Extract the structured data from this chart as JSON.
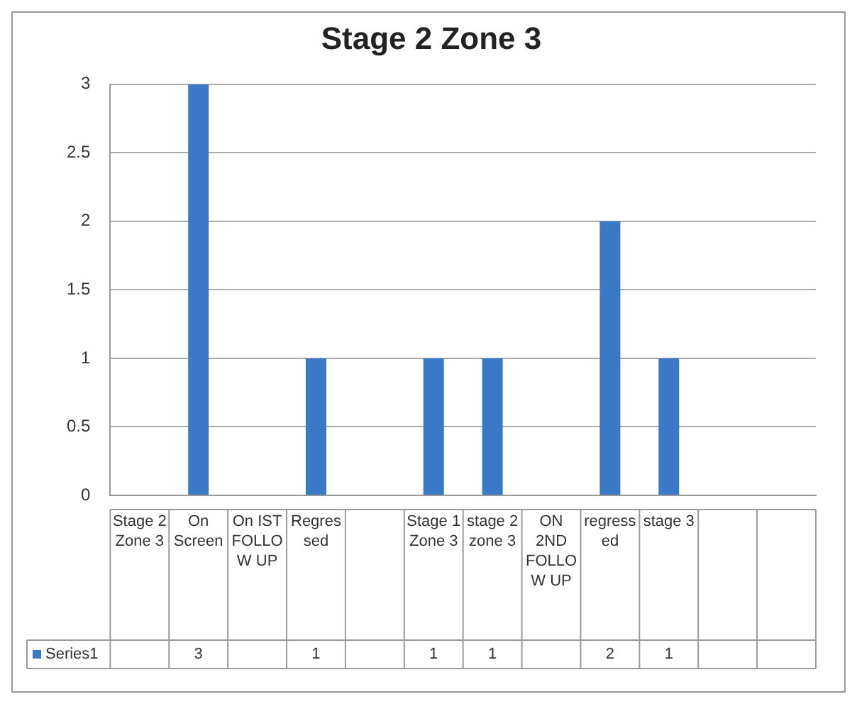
{
  "chart_data": {
    "type": "bar",
    "title": "Stage 2 Zone 3",
    "categories": [
      "Stage 2 Zone 3",
      "On Screen",
      "On IST FOLLOW UP",
      "Regressed",
      null,
      "Stage 1 Zone 3",
      "stage 2 zone 3",
      "ON 2ND FOLLOW UP",
      "regressed",
      "stage 3",
      null,
      null
    ],
    "series": [
      {
        "name": "Series1",
        "color": "#3a78c8",
        "values": [
          null,
          3,
          null,
          1,
          null,
          1,
          1,
          null,
          2,
          1,
          null,
          null
        ]
      }
    ],
    "ylim": [
      0,
      3
    ],
    "yticks": [
      0,
      0.5,
      1,
      1.5,
      2,
      2.5,
      3
    ],
    "grid": "y",
    "legend": "bottom",
    "data_labels": true
  }
}
